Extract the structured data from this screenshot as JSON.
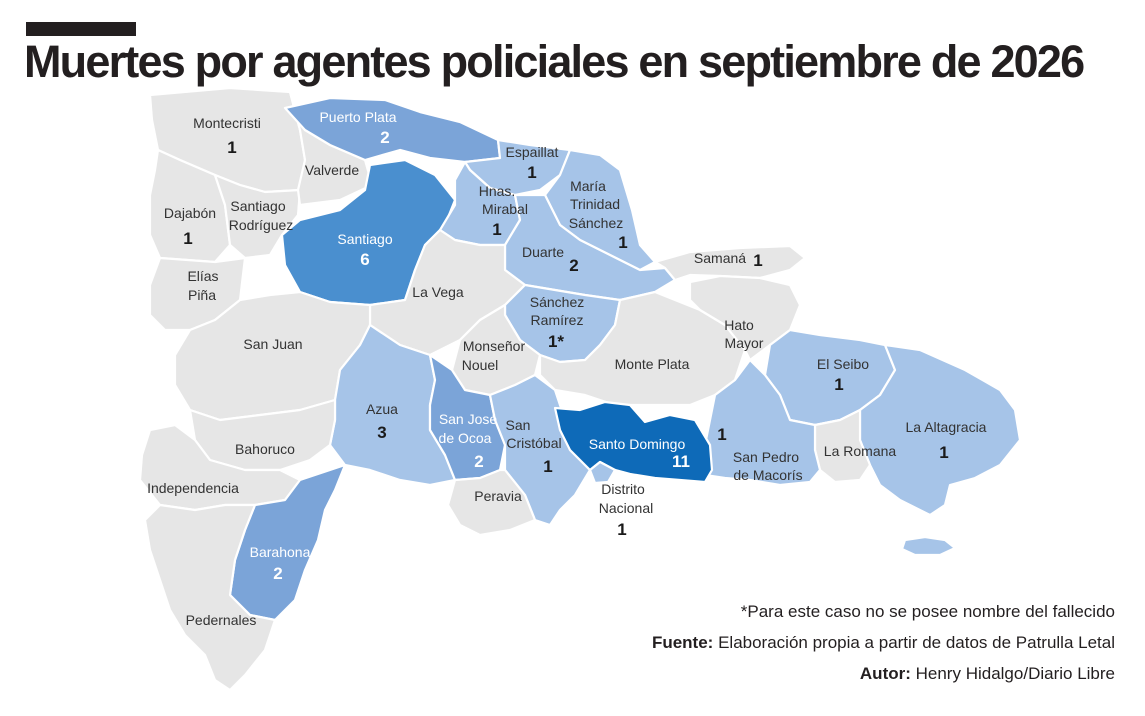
{
  "header": {
    "title": "Muertes por agentes policiales en septiembre de 2026"
  },
  "colors": {
    "none": "#e6e6e6",
    "low": "#a6c4e8",
    "mid": "#7ba4d8",
    "high": "#4a8fcf",
    "max": "#0e6ab8",
    "border": "#ffffff"
  },
  "map": {
    "provinces": [
      {
        "name": "Montecristi",
        "count": "1",
        "level": "none"
      },
      {
        "name": "Puerto Plata",
        "count": "2",
        "level": "mid"
      },
      {
        "name": "Valverde",
        "count": "",
        "level": "none"
      },
      {
        "name": "Espaillat",
        "count": "1",
        "level": "low"
      },
      {
        "name": "Hnas. Mirabal",
        "count": "1",
        "level": "low"
      },
      {
        "name": "María Trinidad Sánchez",
        "count": "1",
        "level": "low"
      },
      {
        "name": "Dajabón",
        "count": "1",
        "level": "none"
      },
      {
        "name": "Santiago Rodríguez",
        "count": "",
        "level": "none"
      },
      {
        "name": "Santiago",
        "count": "6",
        "level": "high"
      },
      {
        "name": "Duarte",
        "count": "2",
        "level": "low"
      },
      {
        "name": "Samaná",
        "count": "1",
        "level": "none"
      },
      {
        "name": "Elías Piña",
        "count": "",
        "level": "none"
      },
      {
        "name": "La Vega",
        "count": "",
        "level": "none"
      },
      {
        "name": "Sánchez Ramírez",
        "count": "1*",
        "level": "low"
      },
      {
        "name": "San Juan",
        "count": "",
        "level": "none"
      },
      {
        "name": "Monseñor Nouel",
        "count": "",
        "level": "none"
      },
      {
        "name": "Monte Plata",
        "count": "",
        "level": "none"
      },
      {
        "name": "Hato Mayor",
        "count": "",
        "level": "none"
      },
      {
        "name": "El Seibo",
        "count": "1",
        "level": "low"
      },
      {
        "name": "Azua",
        "count": "3",
        "level": "low"
      },
      {
        "name": "San José de Ocoa",
        "count": "2",
        "level": "mid"
      },
      {
        "name": "San Cristóbal",
        "count": "1",
        "level": "low"
      },
      {
        "name": "Santo Domingo",
        "count": "11",
        "level": "max"
      },
      {
        "name": "San Pedro de Macorís",
        "count": "1",
        "level": "low"
      },
      {
        "name": "La Romana",
        "count": "",
        "level": "none"
      },
      {
        "name": "La Altagracia",
        "count": "1",
        "level": "low"
      },
      {
        "name": "Bahoruco",
        "count": "",
        "level": "none"
      },
      {
        "name": "Independencia",
        "count": "",
        "level": "none"
      },
      {
        "name": "Peravia",
        "count": "",
        "level": "none"
      },
      {
        "name": "Distrito Nacional",
        "count": "1",
        "level": "low"
      },
      {
        "name": "Barahona",
        "count": "2",
        "level": "mid"
      },
      {
        "name": "Pedernales",
        "count": "",
        "level": "none"
      }
    ]
  },
  "labels": {
    "montecristi": "Montecristi",
    "puerto_plata": "Puerto Plata",
    "valverde": "Valverde",
    "espaillat": "Espaillat",
    "hnas_1": "Hnas.",
    "hnas_2": "Mirabal",
    "mts_1": "María",
    "mts_2": "Trinidad",
    "mts_3": "Sánchez",
    "dajabon": "Dajabón",
    "sr_1": "Santiago",
    "sr_2": "Rodríguez",
    "santiago": "Santiago",
    "duarte": "Duarte",
    "samana": "Samaná",
    "ep_1": "Elías",
    "ep_2": "Piña",
    "la_vega": "La Vega",
    "sra_1": "Sánchez",
    "sra_2": "Ramírez",
    "san_juan": "San Juan",
    "mn_1": "Monseñor",
    "mn_2": "Nouel",
    "monte_plata": "Monte Plata",
    "hm_1": "Hato",
    "hm_2": "Mayor",
    "el_seibo": "El Seibo",
    "azua": "Azua",
    "sjo_1": "San José",
    "sjo_2": "de Ocoa",
    "sc_1": "San",
    "sc_2": "Cristóbal",
    "santo_domingo": "Santo Domingo",
    "spm_1": "San Pedro",
    "spm_2": "de Macorís",
    "la_romana": "La Romana",
    "la_altagracia": "La Altagracia",
    "bahoruco": "Bahoruco",
    "independencia": "Independencia",
    "peravia": "Peravia",
    "dn_1": "Distrito",
    "dn_2": "Nacional",
    "barahona": "Barahona",
    "pedernales": "Pedernales"
  },
  "counts": {
    "montecristi": "1",
    "puerto_plata": "2",
    "espaillat": "1",
    "hnas": "1",
    "mts": "1",
    "dajabon": "1",
    "santiago": "6",
    "duarte": "2",
    "samana": "1",
    "sanchez_ramirez": "1*",
    "el_seibo": "1",
    "azua": "3",
    "ocoa": "2",
    "san_cristobal": "1",
    "santo_domingo": "11",
    "spm": "1",
    "la_altagracia": "1",
    "distrito_nacional": "1",
    "barahona": "2"
  },
  "footer": {
    "note": "*Para este caso no se posee nombre del fallecido",
    "source_label": "Fuente:",
    "source_text": "Elaboración propia a partir de datos de Patrulla Letal",
    "author_label": "Autor:",
    "author_text": "Henry Hidalgo/Diario Libre"
  }
}
